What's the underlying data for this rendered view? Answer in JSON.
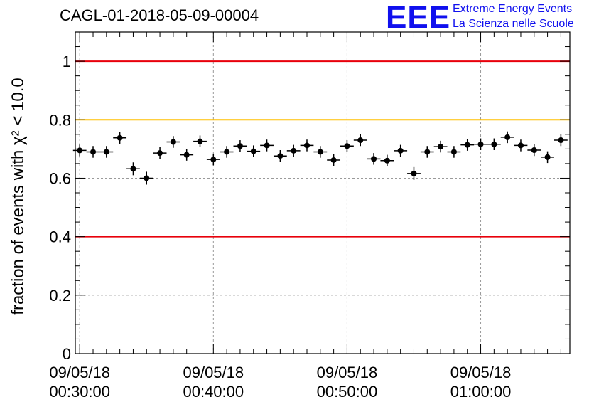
{
  "header": {
    "title": "CAGL-01-2018-05-09-00004"
  },
  "logo": {
    "letters": "EEE",
    "line1": "Extreme Energy Events",
    "line2": "La Scienza nelle Scuole",
    "color": "#1010ee"
  },
  "chart_data": {
    "type": "scatter",
    "title": "CAGL-01-2018-05-09-00004",
    "ylabel": "fraction of events with χ² < 10.0",
    "xlabel": "",
    "ylim": [
      0,
      1.1
    ],
    "xlim_minutes": [
      29.67,
      66.67
    ],
    "y_ticks": [
      "0",
      "0.2",
      "0.4",
      "0.6",
      "0.8",
      "1"
    ],
    "y_tick_values": [
      0,
      0.2,
      0.4,
      0.6,
      0.8,
      1.0
    ],
    "x_ticks": [
      {
        "minute": 30,
        "date": "09/05/18",
        "time": "00:30:00"
      },
      {
        "minute": 40,
        "date": "09/05/18",
        "time": "00:40:00"
      },
      {
        "minute": 50,
        "date": "09/05/18",
        "time": "00:50:00"
      },
      {
        "minute": 60,
        "date": "09/05/18",
        "time": "01:00:00"
      }
    ],
    "reference_lines": [
      {
        "y": 1.0,
        "color": "#e8000b"
      },
      {
        "y": 0.8,
        "color": "#ffbf00"
      },
      {
        "y": 0.4,
        "color": "#e8000b"
      }
    ],
    "grid": true,
    "marker_color": "#000000",
    "series": [
      {
        "x": [
          30,
          31,
          32,
          33,
          34,
          35,
          36,
          37,
          38,
          39,
          40,
          41,
          42,
          43,
          44,
          45,
          46,
          47,
          48,
          49,
          50,
          51,
          52,
          53,
          54,
          55,
          56,
          57,
          58,
          59,
          60,
          61,
          62,
          63,
          64,
          65,
          66
        ],
        "y": [
          0.695,
          0.69,
          0.69,
          0.738,
          0.632,
          0.6,
          0.686,
          0.724,
          0.68,
          0.726,
          0.664,
          0.69,
          0.71,
          0.692,
          0.712,
          0.676,
          0.694,
          0.712,
          0.69,
          0.662,
          0.71,
          0.73,
          0.666,
          0.66,
          0.694,
          0.616,
          0.69,
          0.708,
          0.69,
          0.714,
          0.716,
          0.716,
          0.74,
          0.712,
          0.696,
          0.672,
          0.73
        ],
        "y_err": [
          0.02,
          0.02,
          0.02,
          0.02,
          0.022,
          0.022,
          0.02,
          0.02,
          0.02,
          0.02,
          0.02,
          0.02,
          0.02,
          0.02,
          0.02,
          0.02,
          0.02,
          0.02,
          0.02,
          0.02,
          0.02,
          0.02,
          0.02,
          0.02,
          0.02,
          0.022,
          0.02,
          0.02,
          0.02,
          0.02,
          0.02,
          0.02,
          0.02,
          0.02,
          0.02,
          0.02,
          0.02
        ],
        "x_err_minutes": 0.5
      }
    ]
  }
}
